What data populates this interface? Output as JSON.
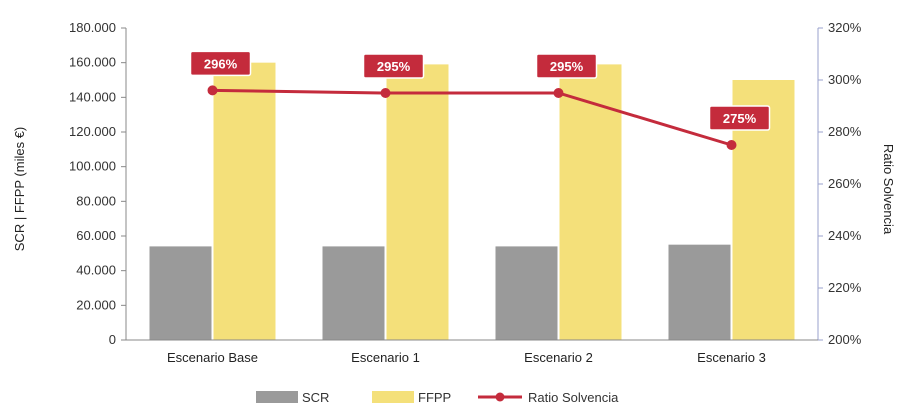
{
  "chart_data": {
    "type": "bar",
    "categories": [
      "Escenario Base",
      "Escenario 1",
      "Escenario 2",
      "Escenario 3"
    ],
    "series": [
      {
        "name": "SCR",
        "type": "bar",
        "axis": "left",
        "color": "#9a9a9a",
        "values": [
          54000,
          54000,
          54000,
          55000
        ]
      },
      {
        "name": "FFPP",
        "type": "bar",
        "axis": "left",
        "color": "#f4e07a",
        "values": [
          160000,
          159000,
          159000,
          150000
        ]
      },
      {
        "name": "Ratio Solvencia",
        "type": "line",
        "axis": "right",
        "color": "#c42b3c",
        "values": [
          296,
          295,
          295,
          275
        ],
        "labels": [
          "296%",
          "295%",
          "295%",
          "275%"
        ]
      }
    ],
    "ylabel": "SCR | FFPP (miles €)",
    "y2label": "Ratio Solvencia",
    "ylim": [
      0,
      180000
    ],
    "y2lim": [
      200,
      320
    ],
    "yticks": [
      "0",
      "20.000",
      "40.000",
      "60.000",
      "80.000",
      "100.000",
      "120.000",
      "140.000",
      "160.000",
      "180.000"
    ],
    "y2ticks": [
      "200%",
      "220%",
      "240%",
      "260%",
      "280%",
      "300%",
      "320%"
    ],
    "grid": false,
    "legend_position": "bottom"
  }
}
